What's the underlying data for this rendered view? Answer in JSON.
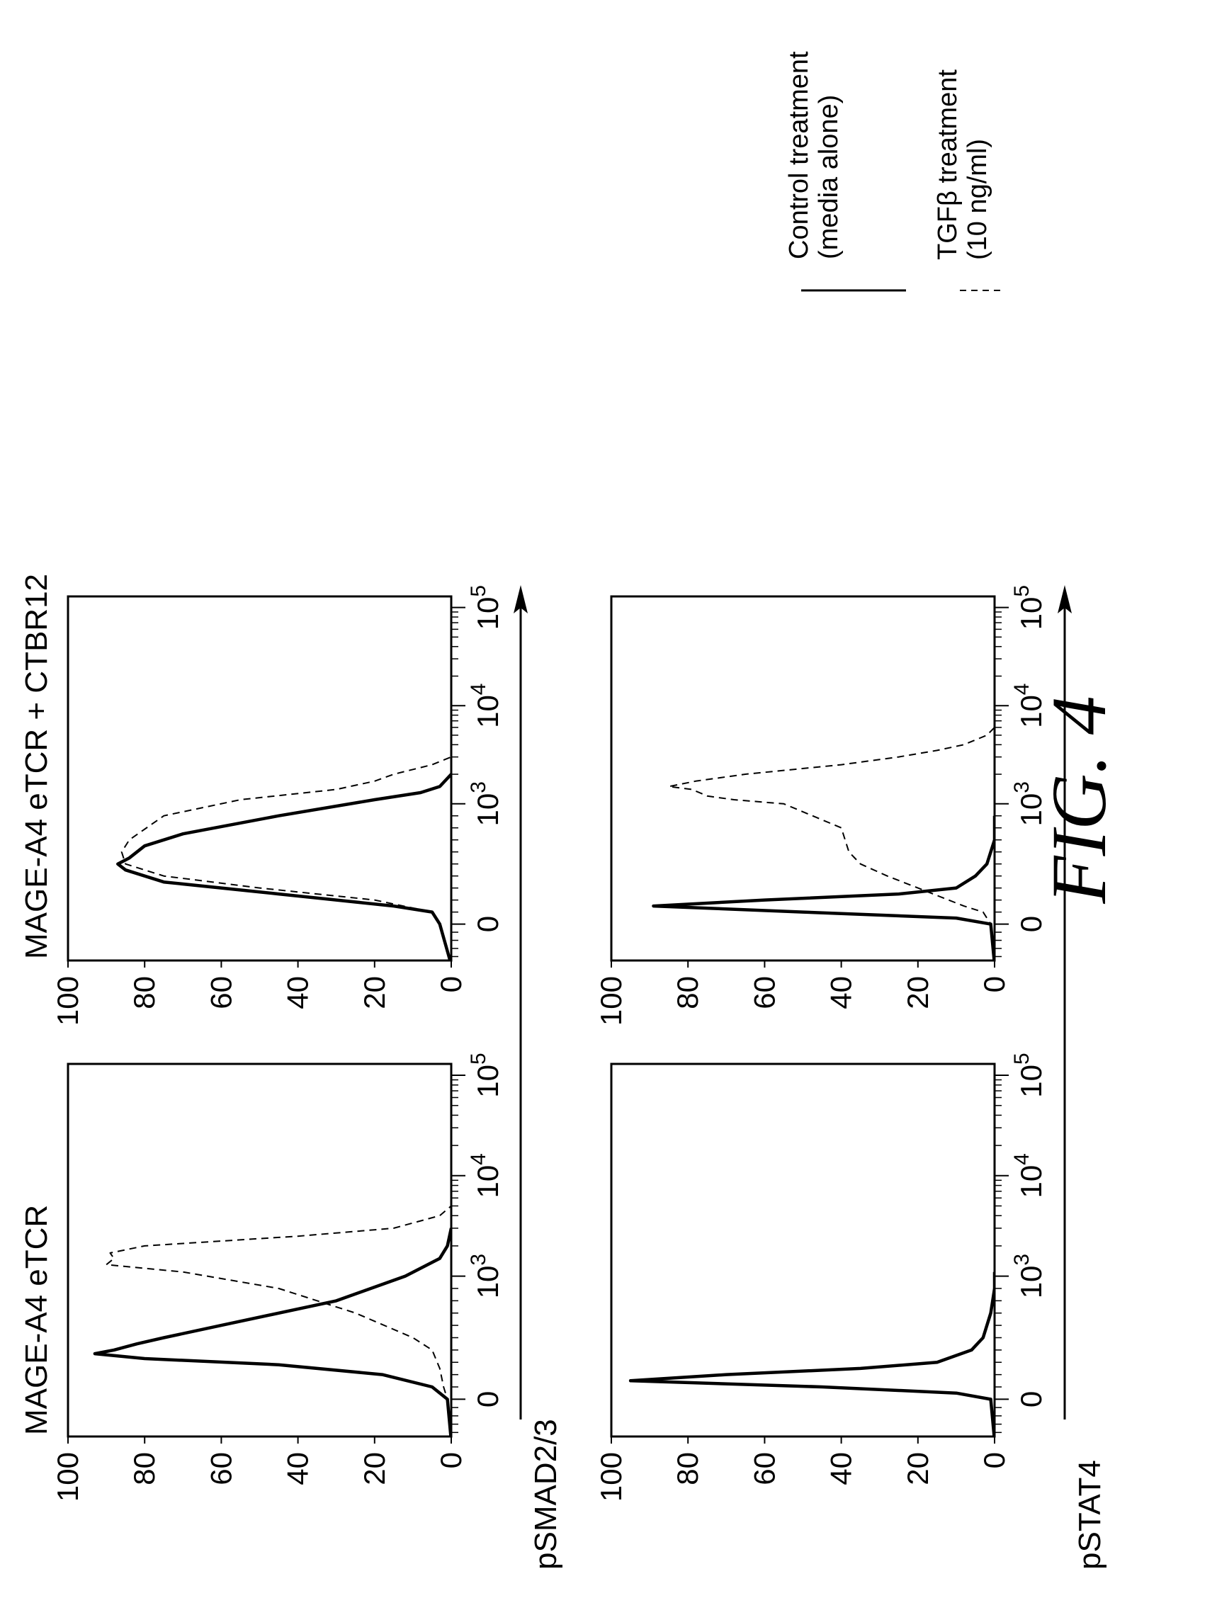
{
  "figure_label": "FIG. 4",
  "legend": {
    "control": {
      "line1": "Control treatment",
      "line2": "(media alone)",
      "style": "solid"
    },
    "tgfb": {
      "line1": "TGFβ treatment",
      "line2": "(10 ng/ml)",
      "style": "dashed"
    }
  },
  "row_labels": [
    "pSMAD2/3",
    "pSTAT4"
  ],
  "y_ticks": [
    "0",
    "20",
    "40",
    "60",
    "80",
    "100"
  ],
  "x_ticks": [
    "0",
    "10^3",
    "10^4",
    "10^5"
  ],
  "chart_data": [
    {
      "type": "line",
      "title": "MAGE-A4 eTCR",
      "xlabel": "pSMAD2/3",
      "xscale": "biexponential",
      "ylim": [
        0,
        100
      ],
      "series": [
        {
          "name": "Control treatment (media alone)",
          "style": "solid",
          "x": [
            -500,
            0,
            100,
            200,
            280,
            330,
            370,
            400,
            450,
            500,
            600,
            800,
            1000,
            1500,
            2000,
            3000
          ],
          "y": [
            0,
            1,
            5,
            18,
            45,
            80,
            93,
            88,
            82,
            75,
            60,
            30,
            12,
            3,
            1,
            0
          ]
        },
        {
          "name": "TGFβ treatment (10 ng/ml)",
          "style": "dashed",
          "x": [
            -500,
            0,
            100,
            250,
            400,
            500,
            700,
            900,
            1100,
            1300,
            1500,
            1700,
            2000,
            2500,
            3000,
            4000,
            5000
          ],
          "y": [
            0,
            1,
            2,
            3,
            5,
            10,
            25,
            45,
            70,
            90,
            88,
            89,
            80,
            40,
            15,
            3,
            0
          ]
        }
      ]
    },
    {
      "type": "line",
      "title": "MAGE-A4 eTCR + CTBR12",
      "xlabel": "pSMAD2/3",
      "xscale": "biexponential",
      "ylim": [
        0,
        100
      ],
      "series": [
        {
          "name": "Control treatment (media alone)",
          "style": "solid",
          "x": [
            -500,
            0,
            100,
            150,
            250,
            350,
            450,
            500,
            550,
            650,
            750,
            900,
            1100,
            1300,
            1500,
            2000
          ],
          "y": [
            0,
            3,
            5,
            15,
            45,
            75,
            85,
            87,
            84,
            80,
            70,
            45,
            20,
            8,
            3,
            0
          ]
        },
        {
          "name": "TGFβ treatment (10 ng/ml)",
          "style": "dashed",
          "x": [
            -500,
            0,
            100,
            200,
            300,
            400,
            500,
            600,
            700,
            900,
            1100,
            1400,
            1700,
            2000,
            2500,
            3000
          ],
          "y": [
            0,
            3,
            5,
            20,
            50,
            75,
            85,
            86,
            84,
            75,
            55,
            30,
            20,
            15,
            5,
            0
          ]
        }
      ]
    },
    {
      "type": "line",
      "title": "",
      "xlabel": "pSTAT4",
      "xscale": "biexponential",
      "ylim": [
        0,
        100
      ],
      "series": [
        {
          "name": "Control treatment (media alone)",
          "style": "solid",
          "x": [
            -500,
            0,
            50,
            100,
            150,
            200,
            250,
            300,
            400,
            500,
            700,
            900,
            1100
          ],
          "y": [
            0,
            1,
            10,
            45,
            95,
            70,
            35,
            15,
            6,
            3,
            1,
            0,
            0
          ]
        },
        {
          "name": "TGFβ treatment (10 ng/ml)",
          "style": "dashed",
          "x": [
            -500,
            0,
            50,
            100,
            150,
            200,
            250,
            300,
            400,
            500,
            700,
            900,
            1100
          ],
          "y": [
            0,
            1,
            10,
            45,
            95,
            70,
            35,
            15,
            6,
            3,
            1,
            0,
            0
          ]
        }
      ]
    },
    {
      "type": "line",
      "title": "",
      "xlabel": "pSTAT4",
      "xscale": "biexponential",
      "ylim": [
        0,
        100
      ],
      "series": [
        {
          "name": "Control treatment (media alone)",
          "style": "solid",
          "x": [
            -500,
            0,
            50,
            100,
            150,
            200,
            250,
            300,
            400,
            500,
            700,
            900
          ],
          "y": [
            0,
            1,
            10,
            50,
            89,
            60,
            25,
            10,
            5,
            2,
            0,
            0
          ]
        },
        {
          "name": "TGFβ treatment (10 ng/ml)",
          "style": "dashed",
          "x": [
            -500,
            0,
            100,
            150,
            200,
            300,
            400,
            500,
            600,
            800,
            1000,
            1100,
            1200,
            1300,
            1400,
            1500,
            1700,
            2000,
            2500,
            3000,
            3500,
            4000,
            5000,
            6000
          ],
          "y": [
            0,
            1,
            3,
            8,
            12,
            20,
            28,
            35,
            38,
            40,
            55,
            68,
            75,
            77,
            79,
            85,
            78,
            65,
            40,
            25,
            15,
            8,
            2,
            0
          ]
        }
      ]
    }
  ]
}
